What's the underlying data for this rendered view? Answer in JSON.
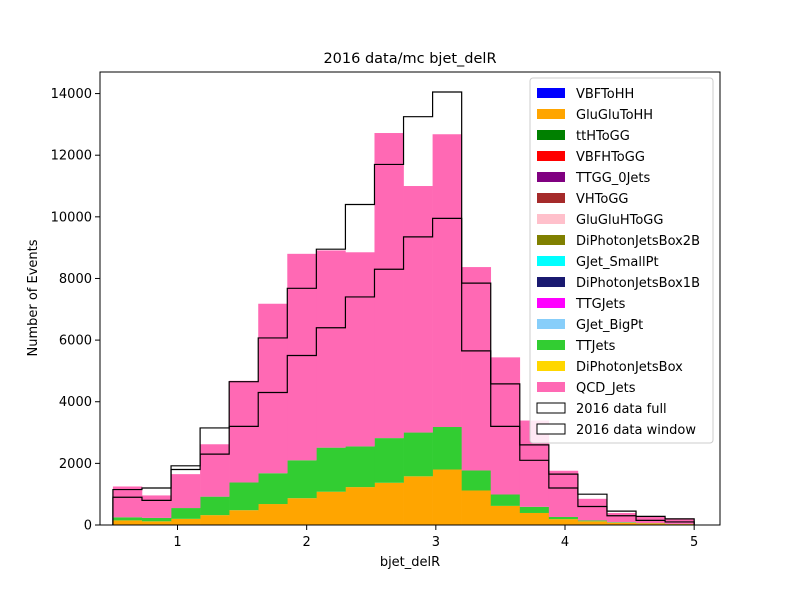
{
  "chart_data": {
    "type": "bar",
    "title": "2016 data/mc bjet_delR",
    "xlabel": "bjet_delR",
    "ylabel": "Number of Events",
    "xlim": [
      0.4,
      5.2
    ],
    "ylim": [
      0,
      14700
    ],
    "xticks": [
      1,
      2,
      3,
      4,
      5
    ],
    "xtick_labels": [
      "1",
      "2",
      "3",
      "4",
      "5"
    ],
    "yticks": [
      0,
      2000,
      4000,
      6000,
      8000,
      10000,
      12000,
      14000
    ],
    "ytick_labels": [
      "0",
      "2000",
      "4000",
      "6000",
      "8000",
      "10000",
      "12000",
      "14000"
    ],
    "grid": false,
    "legend_position": "top-right",
    "bin_edges": [
      0.5,
      0.725,
      0.95,
      1.175,
      1.4,
      1.625,
      1.85,
      2.075,
      2.3,
      2.525,
      2.75,
      2.975,
      3.2,
      3.425,
      3.65,
      3.875,
      4.1,
      4.325,
      4.55,
      4.775,
      5.0
    ],
    "stacked_series": [
      {
        "name": "VBFToHH",
        "color": "#0000ff",
        "values": [
          0,
          0,
          0,
          0,
          0,
          0,
          0,
          0,
          0,
          0,
          0,
          0,
          0,
          0,
          0,
          0,
          0,
          0,
          0,
          0
        ]
      },
      {
        "name": "GluGluToHH",
        "color": "#ffa500",
        "values": [
          150,
          120,
          200,
          320,
          480,
          680,
          870,
          1080,
          1230,
          1370,
          1580,
          1800,
          1120,
          620,
          390,
          190,
          120,
          70,
          50,
          30
        ]
      },
      {
        "name": "ttHToGG",
        "color": "#008000",
        "values": [
          0,
          0,
          0,
          0,
          0,
          0,
          0,
          0,
          0,
          0,
          0,
          0,
          0,
          0,
          0,
          0,
          0,
          0,
          0,
          0
        ]
      },
      {
        "name": "VBFHToGG",
        "color": "#ff0000",
        "values": [
          0,
          0,
          0,
          0,
          0,
          0,
          0,
          0,
          0,
          0,
          0,
          0,
          0,
          0,
          0,
          0,
          0,
          0,
          0,
          0
        ]
      },
      {
        "name": "TTGG_0Jets",
        "color": "#800080",
        "values": [
          0,
          0,
          0,
          0,
          0,
          0,
          0,
          0,
          0,
          0,
          0,
          0,
          0,
          0,
          0,
          0,
          0,
          0,
          0,
          0
        ]
      },
      {
        "name": "VHToGG",
        "color": "#a52a2a",
        "values": [
          0,
          0,
          0,
          0,
          0,
          0,
          0,
          0,
          0,
          0,
          0,
          0,
          0,
          0,
          0,
          0,
          0,
          0,
          0,
          0
        ]
      },
      {
        "name": "GluGluHToGG",
        "color": "#ffc0cb",
        "values": [
          0,
          0,
          0,
          0,
          0,
          0,
          0,
          0,
          0,
          0,
          0,
          0,
          0,
          0,
          0,
          0,
          0,
          0,
          0,
          0
        ]
      },
      {
        "name": "DiPhotonJetsBox2B",
        "color": "#808000",
        "values": [
          0,
          0,
          0,
          0,
          0,
          0,
          0,
          0,
          0,
          0,
          0,
          0,
          0,
          0,
          0,
          0,
          0,
          0,
          0,
          0
        ]
      },
      {
        "name": "GJet_SmallPt",
        "color": "#00ffff",
        "values": [
          0,
          0,
          0,
          0,
          0,
          0,
          0,
          0,
          0,
          0,
          0,
          0,
          0,
          0,
          0,
          0,
          0,
          0,
          0,
          0
        ]
      },
      {
        "name": "DiPhotonJetsBox1B",
        "color": "#191970",
        "values": [
          0,
          0,
          0,
          0,
          0,
          0,
          0,
          0,
          0,
          0,
          0,
          0,
          0,
          0,
          0,
          0,
          0,
          0,
          0,
          0
        ]
      },
      {
        "name": "TTGJets",
        "color": "#ff00ff",
        "values": [
          0,
          0,
          0,
          0,
          0,
          0,
          0,
          0,
          0,
          0,
          0,
          0,
          0,
          0,
          0,
          0,
          0,
          0,
          0,
          0
        ]
      },
      {
        "name": "GJet_BigPt",
        "color": "#87cefa",
        "values": [
          0,
          0,
          0,
          0,
          0,
          0,
          0,
          0,
          0,
          0,
          0,
          0,
          0,
          0,
          0,
          0,
          0,
          0,
          0,
          0
        ]
      },
      {
        "name": "TTJets",
        "color": "#32cd32",
        "values": [
          100,
          110,
          350,
          600,
          900,
          1000,
          1230,
          1430,
          1320,
          1450,
          1420,
          1380,
          650,
          370,
          200,
          70,
          30,
          20,
          10,
          5
        ]
      },
      {
        "name": "DiPhotonJetsBox",
        "color": "#ffd700",
        "values": [
          0,
          0,
          0,
          0,
          0,
          0,
          0,
          0,
          0,
          0,
          0,
          0,
          0,
          0,
          0,
          0,
          0,
          0,
          0,
          0
        ]
      },
      {
        "name": "QCD_Jets",
        "color": "#ff69b4",
        "values": [
          1000,
          730,
          1100,
          1700,
          3300,
          5500,
          6700,
          6400,
          6300,
          9900,
          8000,
          9500,
          6600,
          4450,
          2800,
          1500,
          700,
          300,
          200,
          180
        ]
      }
    ],
    "data_series": [
      {
        "name": "2016 data full",
        "values": [
          900,
          800,
          1800,
          2300,
          3200,
          4300,
          5500,
          6400,
          7400,
          8300,
          9350,
          9950,
          5650,
          3200,
          2100,
          1200,
          600,
          300,
          150,
          100
        ]
      },
      {
        "name": "2016 data window",
        "values": [
          1150,
          1200,
          1920,
          3150,
          4650,
          6070,
          7680,
          8950,
          10400,
          11700,
          13250,
          14050,
          7850,
          4580,
          2600,
          1650,
          1000,
          450,
          280,
          200
        ]
      }
    ]
  }
}
